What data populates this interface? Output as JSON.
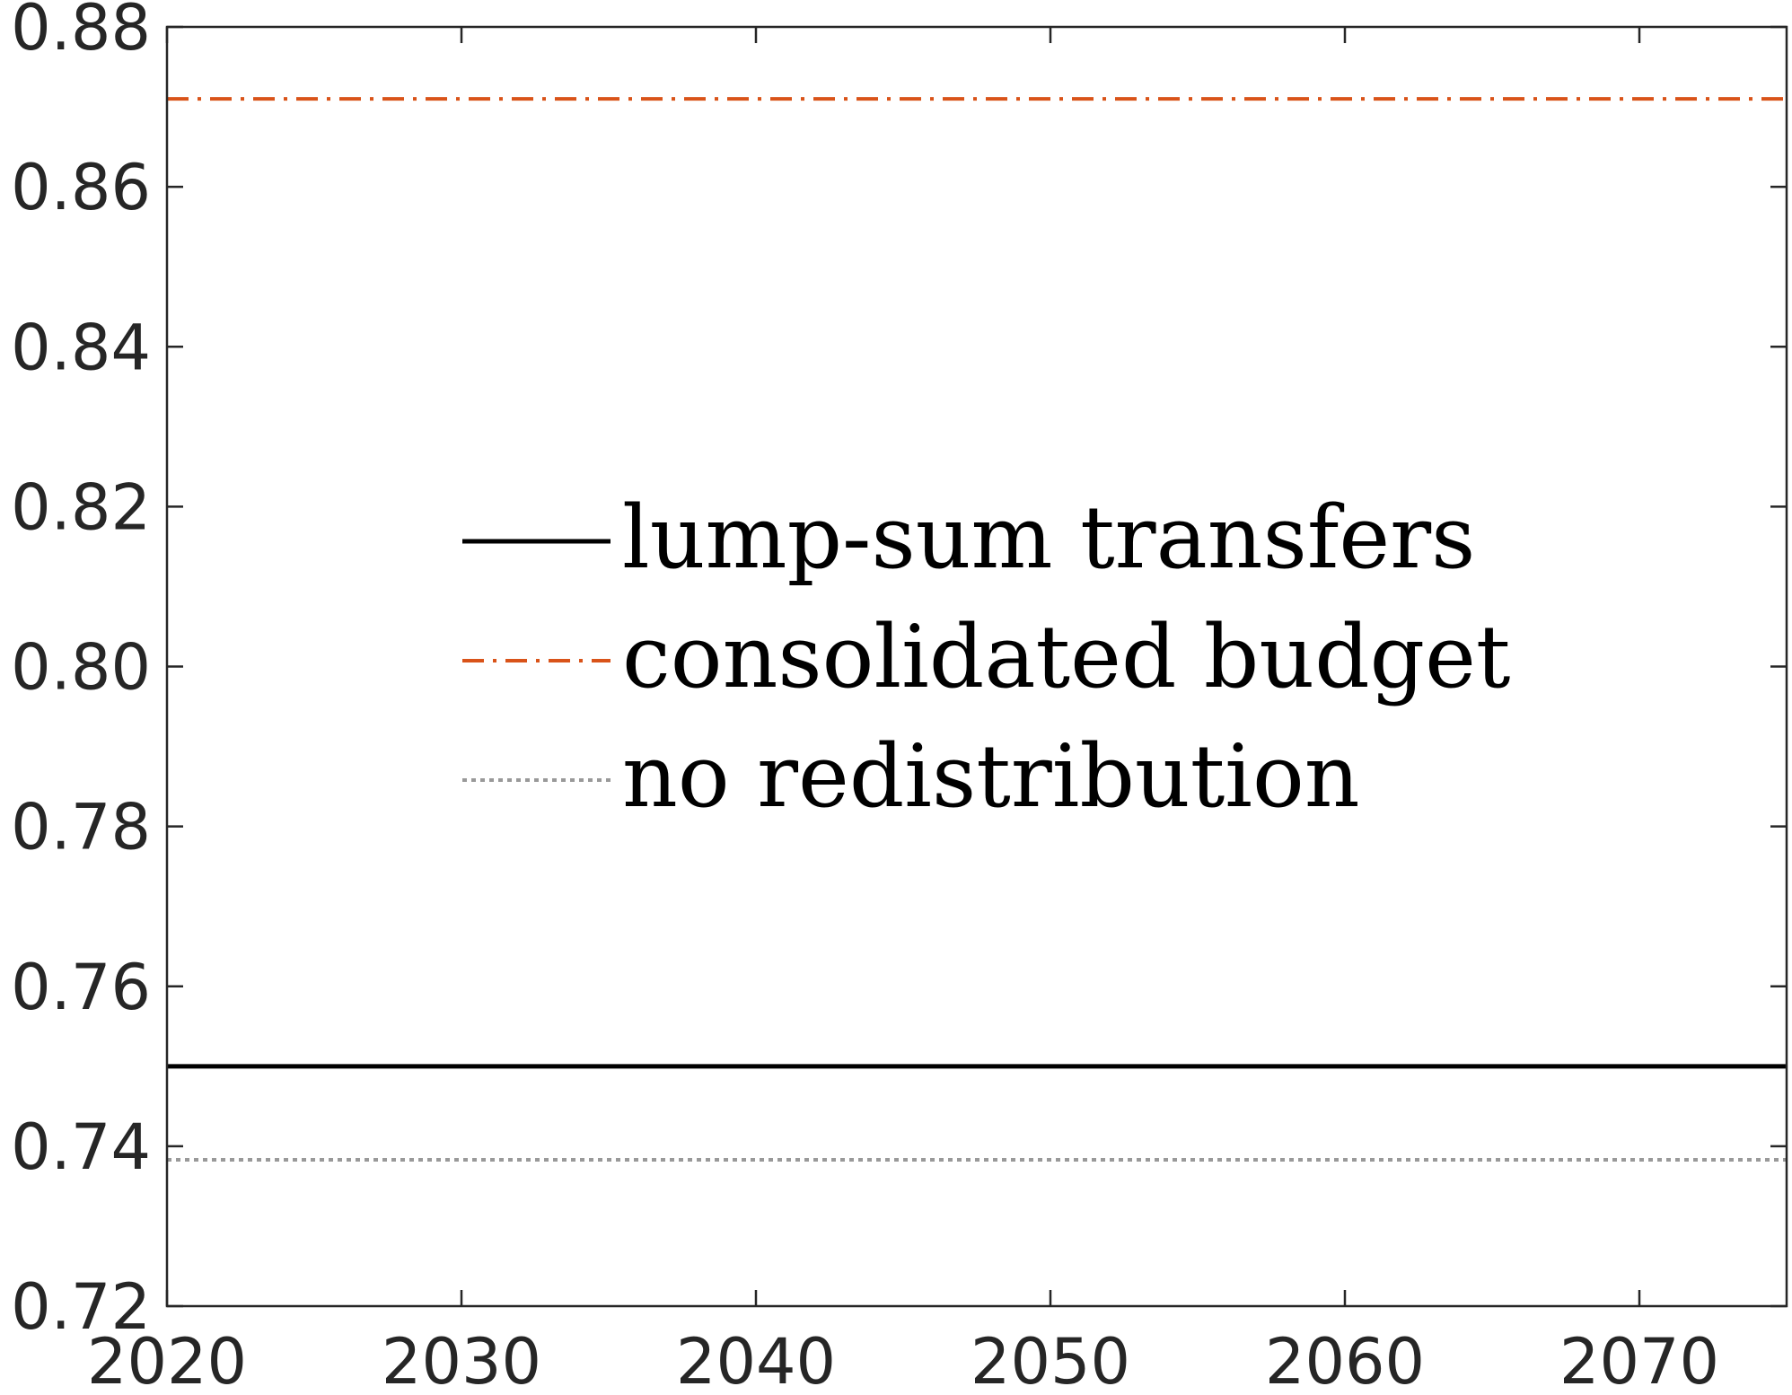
{
  "chart_data": {
    "type": "line",
    "title": "",
    "xlabel": "",
    "ylabel": "",
    "xlim": [
      2020,
      2075
    ],
    "ylim": [
      0.72,
      0.88
    ],
    "xticks": [
      2020,
      2030,
      2040,
      2050,
      2060,
      2070
    ],
    "yticks": [
      0.72,
      0.74,
      0.76,
      0.78,
      0.8,
      0.82,
      0.84,
      0.86,
      0.88
    ],
    "xtick_labels": [
      "2020",
      "2030",
      "2040",
      "2050",
      "2060",
      "2070"
    ],
    "ytick_labels": [
      "0.72",
      "0.74",
      "0.76",
      "0.78",
      "0.80",
      "0.82",
      "0.84",
      "0.86",
      "0.88"
    ],
    "grid": false,
    "legend_position": "center",
    "series": [
      {
        "name": "lump-sum transfers",
        "x": [
          2020,
          2075
        ],
        "y": [
          0.75,
          0.75
        ],
        "color": "#000000",
        "style": "solid"
      },
      {
        "name": "consolidated budget",
        "x": [
          2020,
          2075
        ],
        "y": [
          0.871,
          0.871
        ],
        "color": "#D95319",
        "style": "dash-dot"
      },
      {
        "name": "no redistribution",
        "x": [
          2020,
          2075
        ],
        "y": [
          0.7383,
          0.7383
        ],
        "color": "#999999",
        "style": "dotted"
      }
    ]
  }
}
